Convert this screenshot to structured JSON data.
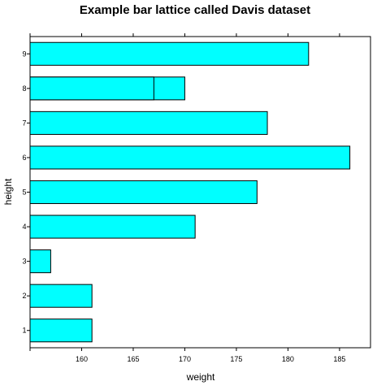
{
  "chart_data": {
    "type": "bar",
    "orientation": "horizontal",
    "title": "Example bar lattice called Davis dataset",
    "xlabel": "weight",
    "ylabel": "height",
    "xlim": [
      155,
      188
    ],
    "x_ticks": [
      160,
      165,
      170,
      175,
      180,
      185
    ],
    "categories": [
      "1",
      "2",
      "3",
      "4",
      "5",
      "6",
      "7",
      "8",
      "9"
    ],
    "bars": [
      {
        "category": "1",
        "value": 161
      },
      {
        "category": "2",
        "value": 161
      },
      {
        "category": "3",
        "value": 157
      },
      {
        "category": "4",
        "value": 171
      },
      {
        "category": "5",
        "value": 177
      },
      {
        "category": "6",
        "value": 186
      },
      {
        "category": "7",
        "value": 178
      },
      {
        "category": "8",
        "value": 170
      },
      {
        "category": "8",
        "value": 167
      },
      {
        "category": "9",
        "value": 182
      }
    ],
    "bar_color": "#00ffff",
    "grid": false
  }
}
